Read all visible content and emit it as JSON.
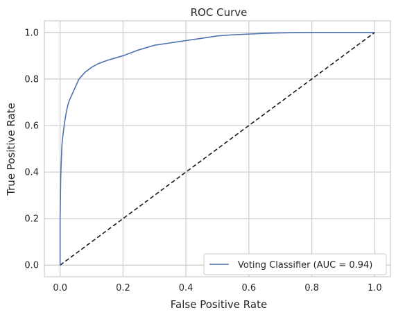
{
  "chart_data": {
    "type": "line",
    "title": "ROC Curve",
    "xlabel": "False Positive Rate",
    "ylabel": "True Positive Rate",
    "xlim": [
      -0.05,
      1.05
    ],
    "ylim": [
      -0.05,
      1.05
    ],
    "xticks": [
      0.0,
      0.2,
      0.4,
      0.6,
      0.8,
      1.0
    ],
    "yticks": [
      0.0,
      0.2,
      0.4,
      0.6,
      0.8,
      1.0
    ],
    "xtick_labels": [
      "0.0",
      "0.2",
      "0.4",
      "0.6",
      "0.8",
      "1.0"
    ],
    "ytick_labels": [
      "0.0",
      "0.2",
      "0.4",
      "0.6",
      "0.8",
      "1.0"
    ],
    "grid": true,
    "legend_position": "lower-right",
    "series": [
      {
        "name": "Voting Classifier (AUC = 0.94)",
        "color": "#4c72b0",
        "style": "solid",
        "x": [
          0.0,
          0.0,
          0.002,
          0.004,
          0.006,
          0.01,
          0.015,
          0.02,
          0.025,
          0.03,
          0.04,
          0.05,
          0.06,
          0.07,
          0.08,
          0.1,
          0.12,
          0.15,
          0.2,
          0.25,
          0.3,
          0.35,
          0.4,
          0.45,
          0.5,
          0.55,
          0.6,
          0.65,
          0.7,
          0.75,
          0.8,
          0.85,
          0.9,
          0.95,
          1.0
        ],
        "y": [
          0.0,
          0.2,
          0.38,
          0.46,
          0.52,
          0.57,
          0.62,
          0.66,
          0.69,
          0.71,
          0.74,
          0.77,
          0.8,
          0.815,
          0.83,
          0.85,
          0.865,
          0.88,
          0.9,
          0.925,
          0.945,
          0.955,
          0.965,
          0.975,
          0.985,
          0.99,
          0.993,
          0.996,
          0.998,
          0.999,
          1.0,
          1.0,
          1.0,
          1.0,
          1.0
        ]
      },
      {
        "name": "",
        "color": "#1a1a1a",
        "style": "dashed",
        "x": [
          0.0,
          1.0
        ],
        "y": [
          0.0,
          1.0
        ]
      }
    ]
  },
  "colors": {
    "grid": "#cccccc",
    "frame": "#cccccc",
    "roc_line": "#4c72b0",
    "diagonal": "#1a1a1a"
  }
}
